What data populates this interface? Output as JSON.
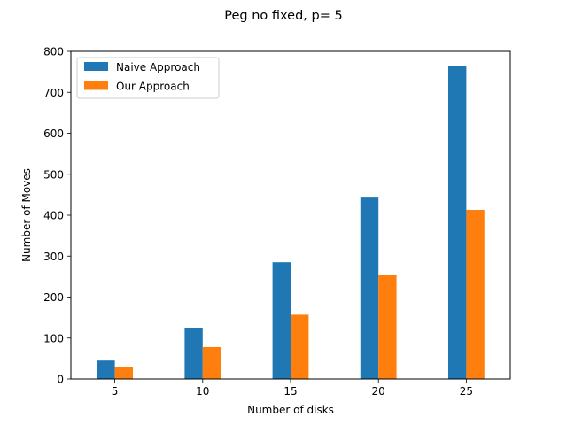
{
  "chart_data": {
    "type": "bar",
    "title": "Peg no fixed, p= 5",
    "xlabel": "Number of disks",
    "ylabel": "Number of Moves",
    "categories": [
      "5",
      "10",
      "15",
      "20",
      "25"
    ],
    "ylim": [
      0,
      800
    ],
    "yticks": [
      0,
      100,
      200,
      300,
      400,
      500,
      600,
      700,
      800
    ],
    "grid": false,
    "legend_position": "top-left",
    "series": [
      {
        "name": "Naive Approach",
        "color": "#1f77b4",
        "values": [
          45,
          125,
          285,
          443,
          765
        ]
      },
      {
        "name": "Our Approach",
        "color": "#ff7f0e",
        "values": [
          30,
          78,
          157,
          253,
          413
        ]
      }
    ]
  }
}
